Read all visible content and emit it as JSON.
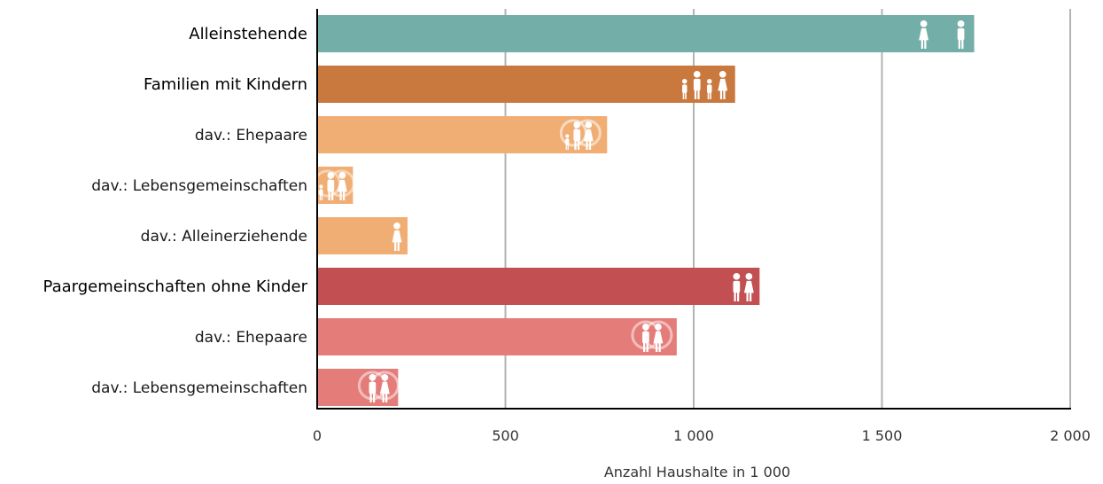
{
  "chart_data": {
    "type": "bar",
    "orientation": "horizontal",
    "categories": [
      "Alleinstehende",
      "Familien mit Kindern",
      "dav.: Ehepaare",
      "dav.: Lebensgemeinschaften",
      "dav.: Alleinerziehende",
      "Paargemeinschaften ohne Kinder",
      "dav.: Ehepaare",
      "dav.: Lebensgemeinschaften"
    ],
    "values": [
      1745,
      1110,
      770,
      95,
      240,
      1175,
      955,
      215
    ],
    "bar_colors": [
      "#74aea8",
      "#c9783e",
      "#f0ae74",
      "#f0ae74",
      "#f0ae74",
      "#c25052",
      "#e47d7a",
      "#e47d7a"
    ],
    "bold_categories": [
      true,
      true,
      false,
      false,
      false,
      true,
      false,
      false
    ],
    "icons": [
      "woman-man-icon",
      "family-icon",
      "married-family-icon",
      "unmarried-family-icon",
      "single-parent-icon",
      "couple-icon",
      "married-couple-icon",
      "unmarried-couple-icon"
    ],
    "xlabel": "Anzahl Haushalte in 1 000",
    "xlim": [
      0,
      2000
    ],
    "xticks": [
      0,
      500,
      1000,
      1500,
      2000
    ],
    "xtick_labels": [
      "0",
      "500",
      "1 000",
      "1 500",
      "2 000"
    ],
    "grid": true,
    "grid_color": "#b3b3b3"
  }
}
